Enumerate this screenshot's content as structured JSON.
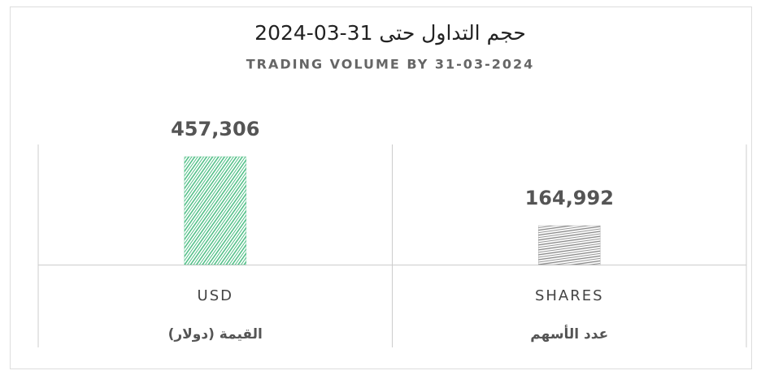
{
  "chart_data": {
    "type": "bar",
    "title": "حجم التداول حتى 31-03-2024",
    "subtitle": "TRADING VOLUME BY 31-03-2024",
    "categories": [
      [
        "USD",
        "القيمة (دولار)"
      ],
      [
        "SHARES",
        "عدد الأسهم"
      ]
    ],
    "values": [
      457306,
      164992
    ],
    "value_labels": [
      "457,306",
      "164,992"
    ],
    "colors": [
      "#3cb878",
      "#8a8a8a"
    ]
  }
}
